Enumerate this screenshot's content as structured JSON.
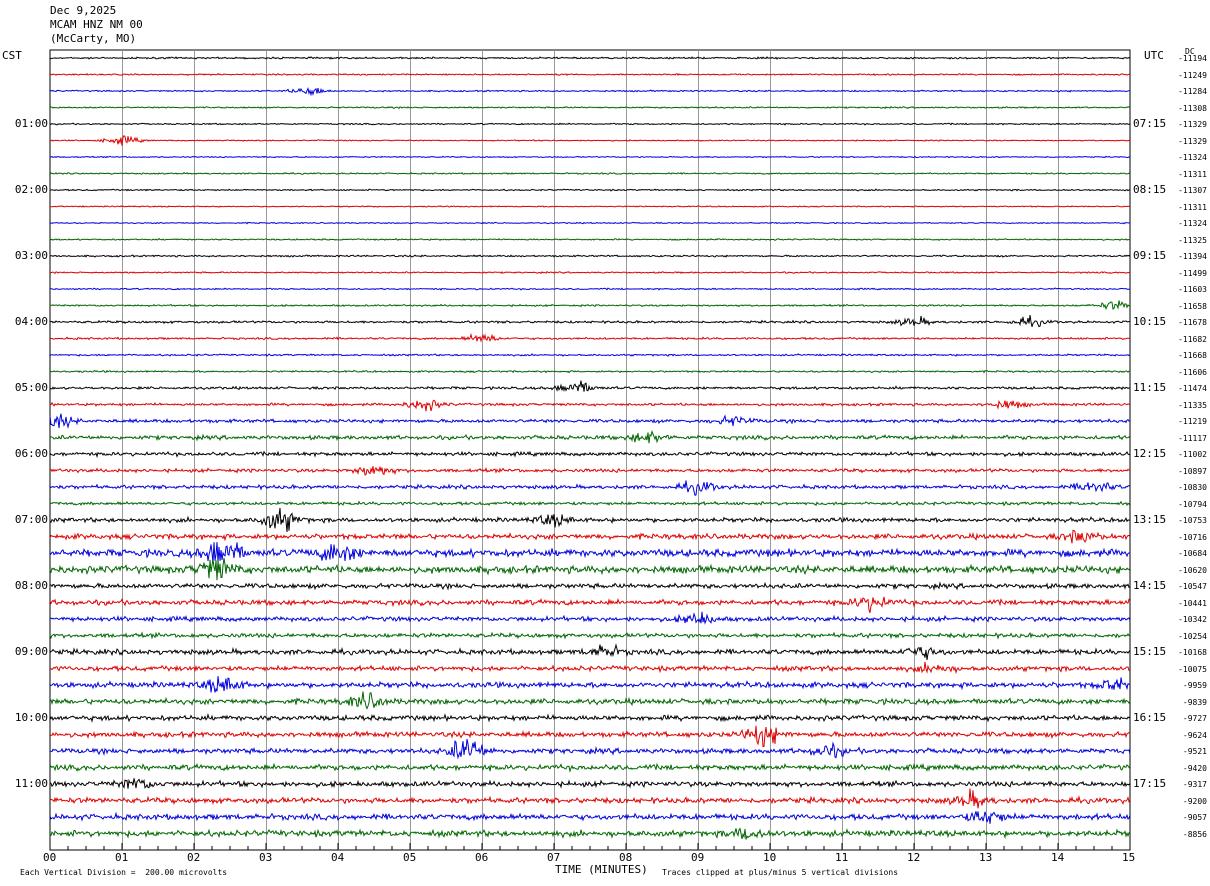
{
  "header": {
    "date": "Dec 9,2025",
    "station": "MCAM HNZ NM 00",
    "location": "(McCarty, MO)"
  },
  "left_tz": "CST",
  "right_tz": "UTC",
  "dc_label": "DC",
  "x_axis_label": "TIME (MINUTES)",
  "footer_left": "Each Vertical Division =  200.00 microvolts",
  "footer_right": "Traces clipped at plus/minus 5 vertical divisions",
  "colors": {
    "black": "#000000",
    "red": "#dd0000",
    "blue": "#0000dd",
    "green": "#006600",
    "grid": "#999999"
  },
  "chart_data": {
    "type": "line",
    "title": "",
    "xlabel": "TIME (MINUTES)",
    "xlim": [
      0,
      15
    ],
    "x_ticks": [
      "00",
      "01",
      "02",
      "03",
      "04",
      "05",
      "06",
      "07",
      "08",
      "09",
      "10",
      "11",
      "12",
      "13",
      "14",
      "15"
    ],
    "left_hour_labels": [
      "01:00",
      "02:00",
      "03:00",
      "04:00",
      "05:00",
      "06:00",
      "07:00",
      "08:00",
      "09:00",
      "10:00",
      "11:00"
    ],
    "right_hour_labels": [
      "07:15",
      "08:15",
      "09:15",
      "10:15",
      "11:15",
      "12:15",
      "13:15",
      "14:15",
      "15:15",
      "16:15",
      "17:15"
    ],
    "trace_colors": [
      "black",
      "red",
      "blue",
      "green"
    ],
    "dc_offsets": [
      "-11194",
      "-11249",
      "-11284",
      "-11308",
      "-11329",
      "-11329",
      "-11324",
      "-11311",
      "-11307",
      "-11311",
      "-11324",
      "-11325",
      "-11394",
      "-11499",
      "-11603",
      "-11658",
      "-11678",
      "-11682",
      "-11668",
      "-11606",
      "-11474",
      "-11335",
      "-11219",
      "-11117",
      "-11002",
      "-10897",
      "-10830",
      "-10794",
      "-10753",
      "-10716",
      "-10684",
      "-10620",
      "-10547",
      "-10441",
      "-10342",
      "-10254",
      "-10168",
      "-10075",
      "-9959",
      "-9839",
      "-9727",
      "-9624",
      "-9521",
      "-9420",
      "-9317",
      "-9200",
      "-9057",
      "-8856"
    ],
    "noise_levels": [
      0.6,
      0.5,
      0.5,
      0.5,
      0.5,
      0.4,
      0.4,
      0.5,
      0.5,
      0.4,
      0.4,
      0.5,
      0.6,
      0.5,
      0.5,
      0.6,
      0.8,
      0.7,
      0.6,
      0.6,
      0.9,
      0.9,
      1.2,
      1.4,
      1.3,
      1.2,
      1.3,
      1.1,
      1.5,
      1.8,
      2.6,
      2.6,
      1.7,
      1.8,
      1.6,
      1.5,
      1.8,
      1.7,
      1.9,
      1.9,
      1.8,
      1.8,
      1.8,
      1.9,
      1.8,
      1.9,
      2.0,
      2.1
    ],
    "events": [
      {
        "row": 2,
        "minute": 3.6,
        "amp": 3
      },
      {
        "row": 5,
        "minute": 1.0,
        "amp": 3
      },
      {
        "row": 15,
        "minute": 14.8,
        "amp": 3
      },
      {
        "row": 16,
        "minute": 12.0,
        "amp": 3
      },
      {
        "row": 16,
        "minute": 13.6,
        "amp": 3
      },
      {
        "row": 17,
        "minute": 6.0,
        "amp": 3
      },
      {
        "row": 20,
        "minute": 7.3,
        "amp": 5
      },
      {
        "row": 21,
        "minute": 5.2,
        "amp": 4
      },
      {
        "row": 21,
        "minute": 13.3,
        "amp": 3
      },
      {
        "row": 22,
        "minute": 0.1,
        "amp": 4
      },
      {
        "row": 22,
        "minute": 9.5,
        "amp": 3
      },
      {
        "row": 23,
        "minute": 8.3,
        "amp": 4
      },
      {
        "row": 25,
        "minute": 4.5,
        "amp": 4
      },
      {
        "row": 26,
        "minute": 9.0,
        "amp": 4
      },
      {
        "row": 26,
        "minute": 14.5,
        "amp": 4
      },
      {
        "row": 28,
        "minute": 3.2,
        "amp": 8
      },
      {
        "row": 28,
        "minute": 7.0,
        "amp": 4
      },
      {
        "row": 29,
        "minute": 14.3,
        "amp": 4
      },
      {
        "row": 30,
        "minute": 2.4,
        "amp": 11
      },
      {
        "row": 30,
        "minute": 4.0,
        "amp": 7
      },
      {
        "row": 31,
        "minute": 2.3,
        "amp": 8
      },
      {
        "row": 33,
        "minute": 11.4,
        "amp": 5
      },
      {
        "row": 34,
        "minute": 9.0,
        "amp": 4
      },
      {
        "row": 36,
        "minute": 7.7,
        "amp": 4
      },
      {
        "row": 36,
        "minute": 12.1,
        "amp": 4
      },
      {
        "row": 37,
        "minute": 12.3,
        "amp": 3
      },
      {
        "row": 38,
        "minute": 2.4,
        "amp": 6
      },
      {
        "row": 38,
        "minute": 14.8,
        "amp": 4
      },
      {
        "row": 39,
        "minute": 4.4,
        "amp": 5
      },
      {
        "row": 41,
        "minute": 9.9,
        "amp": 8
      },
      {
        "row": 42,
        "minute": 5.8,
        "amp": 9
      },
      {
        "row": 42,
        "minute": 10.8,
        "amp": 4
      },
      {
        "row": 44,
        "minute": 1.2,
        "amp": 4
      },
      {
        "row": 45,
        "minute": 12.8,
        "amp": 5
      },
      {
        "row": 46,
        "minute": 13.0,
        "amp": 5
      },
      {
        "row": 47,
        "minute": 9.7,
        "amp": 4
      }
    ]
  }
}
